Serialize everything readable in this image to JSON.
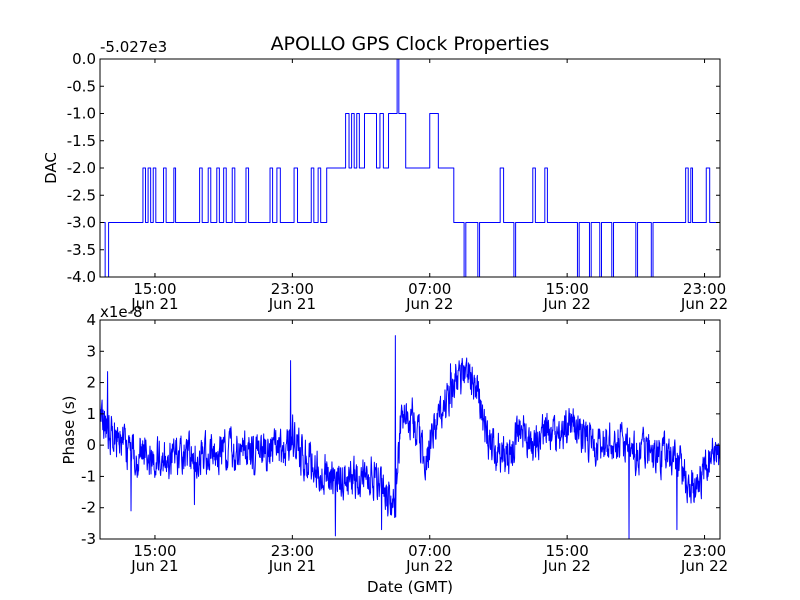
{
  "chart_data": {
    "type": "line",
    "title": "APOLLO GPS Clock Properties",
    "xlabel": "Date (GMT)",
    "line_color": "#0000ff",
    "x_tick_labels": [
      {
        "time": "15:00",
        "date": "Jun 21",
        "hours": 15
      },
      {
        "time": "23:00",
        "date": "Jun 21",
        "hours": 23
      },
      {
        "time": "07:00",
        "date": "Jun 22",
        "hours": 31
      },
      {
        "time": "15:00",
        "date": "Jun 22",
        "hours": 39
      },
      {
        "time": "23:00",
        "date": "Jun 22",
        "hours": 47
      }
    ],
    "xlim_hours": [
      11.8,
      47.9
    ],
    "panels": [
      {
        "ylabel": "DAC",
        "offset_label": "-5.027e3",
        "ylim": [
          -4.0,
          0.0
        ],
        "y_ticks": [
          {
            "value": 0.0,
            "label": "0.0"
          },
          {
            "value": -0.5,
            "label": "-0.5"
          },
          {
            "value": -1.0,
            "label": "-1.0"
          },
          {
            "value": -1.5,
            "label": "-1.5"
          },
          {
            "value": -2.0,
            "label": "-2.0"
          },
          {
            "value": -2.5,
            "label": "-2.5"
          },
          {
            "value": -3.0,
            "label": "-3.0"
          },
          {
            "value": -3.5,
            "label": "-3.5"
          },
          {
            "value": -4.0,
            "label": "-4.0"
          }
        ],
        "series": {
          "name": "DAC",
          "step": true,
          "points": [
            [
              11.8,
              -3
            ],
            [
              12.1,
              -4
            ],
            [
              12.3,
              -3
            ],
            [
              14.3,
              -2
            ],
            [
              14.45,
              -3
            ],
            [
              14.6,
              -2
            ],
            [
              14.75,
              -3
            ],
            [
              14.9,
              -2
            ],
            [
              15.05,
              -3
            ],
            [
              15.5,
              -2
            ],
            [
              15.65,
              -3
            ],
            [
              16.1,
              -2
            ],
            [
              16.2,
              -3
            ],
            [
              17.6,
              -2
            ],
            [
              17.75,
              -3
            ],
            [
              18.1,
              -2
            ],
            [
              18.25,
              -3
            ],
            [
              18.6,
              -2
            ],
            [
              18.75,
              -3
            ],
            [
              19.0,
              -2
            ],
            [
              19.15,
              -3
            ],
            [
              19.5,
              -2
            ],
            [
              19.65,
              -3
            ],
            [
              20.3,
              -2
            ],
            [
              20.45,
              -3
            ],
            [
              21.7,
              -2
            ],
            [
              21.85,
              -3
            ],
            [
              22.1,
              -2
            ],
            [
              22.3,
              -3
            ],
            [
              23.1,
              -2
            ],
            [
              23.3,
              -3
            ],
            [
              24.1,
              -2
            ],
            [
              24.25,
              -3
            ],
            [
              24.5,
              -2
            ],
            [
              24.65,
              -3
            ],
            [
              25.0,
              -2
            ],
            [
              26.1,
              -1
            ],
            [
              26.3,
              -2
            ],
            [
              26.45,
              -1
            ],
            [
              26.6,
              -2
            ],
            [
              26.75,
              -1
            ],
            [
              26.9,
              -2
            ],
            [
              27.2,
              -1
            ],
            [
              27.9,
              -2
            ],
            [
              28.1,
              -1
            ],
            [
              28.3,
              -2
            ],
            [
              28.6,
              -1
            ],
            [
              29.1,
              0
            ],
            [
              29.2,
              -1
            ],
            [
              29.6,
              -2
            ],
            [
              31.0,
              -1
            ],
            [
              31.5,
              -2
            ],
            [
              32.4,
              -3
            ],
            [
              33.0,
              -4
            ],
            [
              33.1,
              -3
            ],
            [
              33.8,
              -4
            ],
            [
              33.9,
              -3
            ],
            [
              35.1,
              -2
            ],
            [
              35.3,
              -3
            ],
            [
              35.9,
              -4
            ],
            [
              36.0,
              -3
            ],
            [
              37.0,
              -2
            ],
            [
              37.15,
              -3
            ],
            [
              37.7,
              -2
            ],
            [
              37.85,
              -3
            ],
            [
              39.6,
              -4
            ],
            [
              39.7,
              -3
            ],
            [
              40.3,
              -4
            ],
            [
              40.4,
              -3
            ],
            [
              40.9,
              -4
            ],
            [
              41.0,
              -3
            ],
            [
              41.6,
              -4
            ],
            [
              41.7,
              -3
            ],
            [
              43.0,
              -4
            ],
            [
              43.1,
              -3
            ],
            [
              43.9,
              -4
            ],
            [
              44.0,
              -3
            ],
            [
              45.9,
              -2
            ],
            [
              46.05,
              -3
            ],
            [
              46.2,
              -2
            ],
            [
              46.3,
              -3
            ],
            [
              47.1,
              -2
            ],
            [
              47.3,
              -3
            ],
            [
              47.9,
              -3
            ]
          ]
        }
      },
      {
        "ylabel": "Phase (s)",
        "offset_label": "x1e-8",
        "ylim": [
          -3,
          4
        ],
        "y_ticks": [
          {
            "value": 4,
            "label": "4"
          },
          {
            "value": 3,
            "label": "3"
          },
          {
            "value": 2,
            "label": "2"
          },
          {
            "value": 1,
            "label": "1"
          },
          {
            "value": 0,
            "label": "0"
          },
          {
            "value": -1,
            "label": "-1"
          },
          {
            "value": -2,
            "label": "-2"
          },
          {
            "value": -3,
            "label": "-3"
          }
        ],
        "series": {
          "name": "Phase",
          "trend": [
            [
              11.8,
              1.0
            ],
            [
              12.5,
              0.3
            ],
            [
              13.5,
              -0.2
            ],
            [
              15.0,
              -0.4
            ],
            [
              17.0,
              -0.3
            ],
            [
              19.0,
              -0.2
            ],
            [
              21.0,
              -0.3
            ],
            [
              22.5,
              -0.1
            ],
            [
              23.0,
              0.3
            ],
            [
              23.6,
              -0.3
            ],
            [
              24.5,
              -0.8
            ],
            [
              26.0,
              -1.2
            ],
            [
              27.5,
              -0.9
            ],
            [
              28.5,
              -1.6
            ],
            [
              29.0,
              -1.9
            ],
            [
              29.3,
              0.7
            ],
            [
              30.0,
              0.9
            ],
            [
              30.7,
              -0.4
            ],
            [
              31.3,
              0.5
            ],
            [
              32.0,
              1.5
            ],
            [
              32.6,
              2.2
            ],
            [
              33.2,
              2.3
            ],
            [
              33.8,
              1.7
            ],
            [
              34.4,
              0.0
            ],
            [
              35.5,
              -0.4
            ],
            [
              36.3,
              0.6
            ],
            [
              36.9,
              -0.2
            ],
            [
              37.7,
              0.4
            ],
            [
              38.5,
              0.3
            ],
            [
              39.2,
              0.6
            ],
            [
              40.0,
              0.3
            ],
            [
              41.0,
              0.0
            ],
            [
              42.0,
              0.2
            ],
            [
              43.0,
              -0.2
            ],
            [
              44.0,
              -0.3
            ],
            [
              45.0,
              -0.2
            ],
            [
              45.7,
              -0.7
            ],
            [
              46.2,
              -1.3
            ],
            [
              46.6,
              -1.5
            ],
            [
              47.0,
              -0.6
            ],
            [
              47.4,
              -0.4
            ],
            [
              47.9,
              -0.2
            ]
          ],
          "noise_amplitude": 0.55,
          "samples": 1800,
          "spikes": [
            [
              12.25,
              2.35
            ],
            [
              22.9,
              2.7
            ],
            [
              29.0,
              3.5
            ],
            [
              32.2,
              2.6
            ],
            [
              28.2,
              -2.7
            ],
            [
              25.5,
              -2.9
            ],
            [
              42.6,
              -3.0
            ],
            [
              45.4,
              -2.7
            ],
            [
              13.6,
              -2.1
            ],
            [
              17.3,
              -1.9
            ]
          ]
        }
      }
    ]
  }
}
